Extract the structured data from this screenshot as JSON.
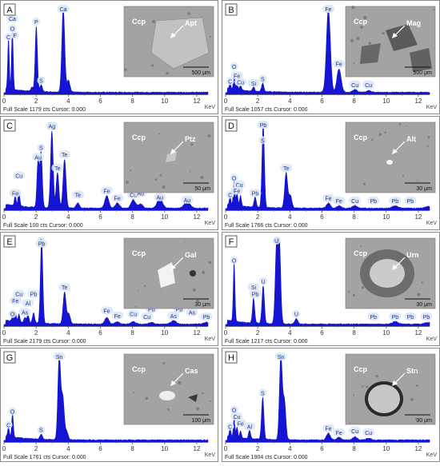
{
  "figure": {
    "axis_unit": "KeV",
    "tick_labels": [
      "0",
      "2",
      "4",
      "6",
      "8",
      "10",
      "12"
    ],
    "colors": {
      "spectrum": "#1414d2",
      "label_bubble": "#dde8f6",
      "label_text": "#1c2f8a",
      "frame": "#8a8a8a",
      "bse_bg": "#9a9a9a"
    }
  },
  "chart_data": [
    {
      "type": "area",
      "panel": "A",
      "xlabel": "KeV",
      "xlim": [
        0,
        12.7
      ],
      "footer": "Full Scale 1179 cts Cursor: 0.000",
      "peaks": [
        [
          0.28,
          0.6
        ],
        [
          0.52,
          0.7
        ],
        [
          1.74,
          0.05
        ],
        [
          2.01,
          0.78
        ],
        [
          2.31,
          0.08
        ],
        [
          3.69,
          1.0
        ],
        [
          4.01,
          0.14
        ]
      ],
      "labels": [
        {
          "text": "C",
          "x": 0.28,
          "y": 0.6
        },
        {
          "text": "O",
          "x": 0.52,
          "y": 0.7
        },
        {
          "text": "Ca",
          "x": 0.52,
          "y": 0.82
        },
        {
          "text": "F",
          "x": 0.68,
          "y": 0.62
        },
        {
          "text": "P",
          "x": 2.01,
          "y": 0.78
        },
        {
          "text": "S",
          "x": 2.31,
          "y": 0.08
        },
        {
          "text": "Ca",
          "x": 3.69,
          "y": 1.0
        }
      ],
      "inset": {
        "image": "Apt grain in Ccp",
        "labels": [
          {
            "text": "Ccp"
          },
          {
            "text": "Apt"
          }
        ],
        "scale_bar": "500 μm"
      }
    },
    {
      "type": "area",
      "panel": "B",
      "xlabel": "KeV",
      "xlim": [
        0,
        12.7
      ],
      "footer": "Full Scale 1057 cts Cursor: 0.000",
      "peaks": [
        [
          0.28,
          0.07
        ],
        [
          0.53,
          0.16
        ],
        [
          0.71,
          0.07
        ],
        [
          0.93,
          0.06
        ],
        [
          1.74,
          0.05
        ],
        [
          2.31,
          0.1
        ],
        [
          6.4,
          1.0
        ],
        [
          7.06,
          0.28
        ],
        [
          8.05,
          0.03
        ],
        [
          8.9,
          0.02
        ]
      ],
      "labels": [
        {
          "text": "C",
          "x": 0.28,
          "y": 0.07
        },
        {
          "text": "O",
          "x": 0.53,
          "y": 0.25
        },
        {
          "text": "Fe",
          "x": 0.71,
          "y": 0.14
        },
        {
          "text": "Cu",
          "x": 0.93,
          "y": 0.06
        },
        {
          "text": "Si",
          "x": 1.74,
          "y": 0.05
        },
        {
          "text": "S",
          "x": 2.31,
          "y": 0.1
        },
        {
          "text": "Fe",
          "x": 6.4,
          "y": 1.0
        },
        {
          "text": "Fe",
          "x": 7.06,
          "y": 0.28
        },
        {
          "text": "Cu",
          "x": 8.05,
          "y": 0.03
        },
        {
          "text": "Cu",
          "x": 8.9,
          "y": 0.03
        }
      ],
      "inset": {
        "image": "Mag in Ccp",
        "labels": [
          {
            "text": "Ccp"
          },
          {
            "text": "Mag"
          }
        ],
        "scale_bar": "500 μm"
      }
    },
    {
      "type": "area",
      "panel": "C",
      "xlabel": "KeV",
      "xlim": [
        0,
        12.7
      ],
      "footer": "Full Scale 100 cts Cursor: 0.000",
      "peaks": [
        [
          0.7,
          0.12
        ],
        [
          0.93,
          0.18
        ],
        [
          2.12,
          0.55
        ],
        [
          2.31,
          0.66
        ],
        [
          2.98,
          0.92
        ],
        [
          3.33,
          0.42
        ],
        [
          3.77,
          0.58
        ],
        [
          4.6,
          0.06
        ],
        [
          6.4,
          0.15
        ],
        [
          7.06,
          0.06
        ],
        [
          8.05,
          0.1
        ],
        [
          8.5,
          0.05
        ],
        [
          9.7,
          0.12
        ],
        [
          11.4,
          0.08
        ]
      ],
      "labels": [
        {
          "text": "Fe",
          "x": 0.7,
          "y": 0.12
        },
        {
          "text": "Cu",
          "x": 0.93,
          "y": 0.33
        },
        {
          "text": "Au",
          "x": 2.12,
          "y": 0.55
        },
        {
          "text": "S",
          "x": 2.31,
          "y": 0.66
        },
        {
          "text": "Ag",
          "x": 2.98,
          "y": 0.92
        },
        {
          "text": "Te",
          "x": 3.33,
          "y": 0.42
        },
        {
          "text": "Te",
          "x": 3.77,
          "y": 0.58
        },
        {
          "text": "Te",
          "x": 4.6,
          "y": 0.1
        },
        {
          "text": "Fe",
          "x": 6.4,
          "y": 0.15
        },
        {
          "text": "Fe",
          "x": 7.06,
          "y": 0.06
        },
        {
          "text": "Cu",
          "x": 8.05,
          "y": 0.1
        },
        {
          "text": "Au",
          "x": 8.5,
          "y": 0.12
        },
        {
          "text": "Au",
          "x": 9.7,
          "y": 0.07
        },
        {
          "text": "Au",
          "x": 11.4,
          "y": 0.04
        }
      ],
      "inset": {
        "image": "Ptz in Ccp",
        "labels": [
          {
            "text": "Ccp"
          },
          {
            "text": "Ptz"
          }
        ],
        "scale_bar": "50 μm"
      }
    },
    {
      "type": "area",
      "panel": "D",
      "xlabel": "KeV",
      "xlim": [
        0,
        12.7
      ],
      "footer": "Full Scale 1766 cts Cursor: 0.000",
      "peaks": [
        [
          0.28,
          0.1
        ],
        [
          0.53,
          0.3
        ],
        [
          0.71,
          0.15
        ],
        [
          0.93,
          0.12
        ],
        [
          1.84,
          0.12
        ],
        [
          2.34,
          1.0
        ],
        [
          3.77,
          0.42
        ],
        [
          4.03,
          0.15
        ],
        [
          6.4,
          0.06
        ],
        [
          7.06,
          0.03
        ],
        [
          8.05,
          0.03
        ],
        [
          10.55,
          0.03
        ],
        [
          12.6,
          0.02
        ]
      ],
      "labels": [
        {
          "text": "C",
          "x": 0.28,
          "y": 0.1
        },
        {
          "text": "O",
          "x": 0.53,
          "y": 0.3
        },
        {
          "text": "Cu",
          "x": 0.85,
          "y": 0.22
        },
        {
          "text": "Fe",
          "x": 0.71,
          "y": 0.15
        },
        {
          "text": "Pb",
          "x": 1.84,
          "y": 0.12
        },
        {
          "text": "Pb",
          "x": 2.34,
          "y": 1.0
        },
        {
          "text": "S",
          "x": 2.31,
          "y": 0.75
        },
        {
          "text": "Te",
          "x": 3.77,
          "y": 0.42
        },
        {
          "text": "Fe",
          "x": 6.4,
          "y": 0.06
        },
        {
          "text": "Fe",
          "x": 7.06,
          "y": 0.03
        },
        {
          "text": "Cu",
          "x": 8.05,
          "y": 0.03
        },
        {
          "text": "Pb",
          "x": 9.2,
          "y": 0.03
        },
        {
          "text": "Pb",
          "x": 10.55,
          "y": 0.03
        },
        {
          "text": "Pb",
          "x": 11.5,
          "y": 0.03
        }
      ],
      "inset": {
        "image": "Alt in Ccp",
        "labels": [
          {
            "text": "Ccp"
          },
          {
            "text": "Alt"
          }
        ],
        "scale_bar": "30 μm"
      }
    },
    {
      "type": "area",
      "panel": "E",
      "xlabel": "KeV",
      "xlim": [
        0,
        12.7
      ],
      "footer": "Full Scale 2179 cts Cursor: 0.000",
      "peaks": [
        [
          0.53,
          0.06
        ],
        [
          0.71,
          0.12
        ],
        [
          0.93,
          0.09
        ],
        [
          1.3,
          0.06
        ],
        [
          1.49,
          0.1
        ],
        [
          1.84,
          0.12
        ],
        [
          2.34,
          1.0
        ],
        [
          3.77,
          0.38
        ],
        [
          4.03,
          0.12
        ],
        [
          6.4,
          0.08
        ],
        [
          7.06,
          0.03
        ],
        [
          8.05,
          0.03
        ],
        [
          9.18,
          0.02
        ],
        [
          10.55,
          0.04
        ],
        [
          12.6,
          0.02
        ]
      ],
      "labels": [
        {
          "text": "O",
          "x": 0.53,
          "y": 0.06
        },
        {
          "text": "Fe",
          "x": 0.71,
          "y": 0.22
        },
        {
          "text": "Cu",
          "x": 0.93,
          "y": 0.3
        },
        {
          "text": "As",
          "x": 1.3,
          "y": 0.08
        },
        {
          "text": "Al",
          "x": 1.49,
          "y": 0.19
        },
        {
          "text": "Pb",
          "x": 1.84,
          "y": 0.3
        },
        {
          "text": "S",
          "x": 2.31,
          "y": 1.0
        },
        {
          "text": "Pb",
          "x": 2.34,
          "y": 0.9
        },
        {
          "text": "Te",
          "x": 3.77,
          "y": 0.38
        },
        {
          "text": "Fe",
          "x": 6.4,
          "y": 0.1
        },
        {
          "text": "Fe",
          "x": 7.06,
          "y": 0.04
        },
        {
          "text": "Cu",
          "x": 8.05,
          "y": 0.06
        },
        {
          "text": "Cu",
          "x": 8.9,
          "y": 0.03
        },
        {
          "text": "Pb",
          "x": 9.18,
          "y": 0.12
        },
        {
          "text": "As",
          "x": 10.55,
          "y": 0.04
        },
        {
          "text": "As",
          "x": 11.7,
          "y": 0.08
        },
        {
          "text": "Pb",
          "x": 10.9,
          "y": 0.12
        },
        {
          "text": "Pb",
          "x": 12.6,
          "y": 0.03
        }
      ],
      "inset": {
        "image": "Gal in Ccp",
        "labels": [
          {
            "text": "Ccp"
          },
          {
            "text": "Gal"
          }
        ],
        "scale_bar": "30 μm"
      }
    },
    {
      "type": "area",
      "panel": "F",
      "xlabel": "KeV",
      "xlim": [
        0,
        12.7
      ],
      "footer": "Full Scale 1217 cts Cursor: 0.000",
      "peaks": [
        [
          0.53,
          0.7
        ],
        [
          1.74,
          0.3
        ],
        [
          2.34,
          0.45
        ],
        [
          3.17,
          0.88
        ],
        [
          3.34,
          1.0
        ],
        [
          4.4,
          0.06
        ],
        [
          10.55,
          0.03
        ],
        [
          12.6,
          0.02
        ]
      ],
      "labels": [
        {
          "text": "O",
          "x": 0.53,
          "y": 0.7
        },
        {
          "text": "Si",
          "x": 1.74,
          "y": 0.38
        },
        {
          "text": "Pb",
          "x": 1.84,
          "y": 0.3
        },
        {
          "text": "U",
          "x": 2.34,
          "y": 0.45
        },
        {
          "text": "U",
          "x": 3.17,
          "y": 1.0
        },
        {
          "text": "U",
          "x": 4.4,
          "y": 0.06
        },
        {
          "text": "Pb",
          "x": 9.2,
          "y": 0.03
        },
        {
          "text": "Pb",
          "x": 10.55,
          "y": 0.03
        },
        {
          "text": "Pb",
          "x": 11.5,
          "y": 0.03
        },
        {
          "text": "Pb",
          "x": 12.5,
          "y": 0.03
        }
      ],
      "inset": {
        "image": "Urn in Ccp",
        "labels": [
          {
            "text": "Ccp"
          },
          {
            "text": "Urn"
          }
        ],
        "scale_bar": "30 μm"
      }
    },
    {
      "type": "area",
      "panel": "G",
      "xlabel": "KeV",
      "xlim": [
        0,
        12.7
      ],
      "footer": "Full Scale 1761 cts Cursor: 0.000",
      "peaks": [
        [
          0.28,
          0.12
        ],
        [
          0.53,
          0.28
        ],
        [
          2.31,
          0.06
        ],
        [
          3.44,
          1.0
        ],
        [
          3.66,
          0.5
        ],
        [
          3.9,
          0.1
        ]
      ],
      "labels": [
        {
          "text": "C",
          "x": 0.28,
          "y": 0.12
        },
        {
          "text": "O",
          "x": 0.53,
          "y": 0.28
        },
        {
          "text": "S",
          "x": 2.31,
          "y": 0.06
        },
        {
          "text": "Sn",
          "x": 3.44,
          "y": 1.0
        }
      ],
      "inset": {
        "image": "Cas in Ccp",
        "labels": [
          {
            "text": "Ccp"
          },
          {
            "text": "Cas"
          }
        ],
        "scale_bar": "100 μm"
      }
    },
    {
      "type": "area",
      "panel": "H",
      "xlabel": "KeV",
      "xlim": [
        0,
        12.7
      ],
      "footer": "Full Scale 1904 cts Cursor: 0.000",
      "peaks": [
        [
          0.28,
          0.1
        ],
        [
          0.53,
          0.22
        ],
        [
          0.71,
          0.12
        ],
        [
          0.93,
          0.08
        ],
        [
          1.49,
          0.1
        ],
        [
          2.31,
          0.5
        ],
        [
          3.44,
          1.0
        ],
        [
          3.66,
          0.46
        ],
        [
          6.4,
          0.08
        ],
        [
          7.06,
          0.03
        ],
        [
          8.05,
          0.04
        ],
        [
          8.9,
          0.02
        ]
      ],
      "labels": [
        {
          "text": "C",
          "x": 0.28,
          "y": 0.1
        },
        {
          "text": "O",
          "x": 0.53,
          "y": 0.3
        },
        {
          "text": "Cu",
          "x": 0.7,
          "y": 0.22
        },
        {
          "text": "Fe",
          "x": 0.93,
          "y": 0.14
        },
        {
          "text": "Al",
          "x": 1.49,
          "y": 0.1
        },
        {
          "text": "S",
          "x": 2.31,
          "y": 0.5
        },
        {
          "text": "Sn",
          "x": 3.44,
          "y": 1.0
        },
        {
          "text": "Fe",
          "x": 6.4,
          "y": 0.08
        },
        {
          "text": "Fe",
          "x": 7.06,
          "y": 0.03
        },
        {
          "text": "Cu",
          "x": 8.05,
          "y": 0.05
        },
        {
          "text": "Cu",
          "x": 8.9,
          "y": 0.03
        }
      ],
      "inset": {
        "image": "Stn in Ccp",
        "labels": [
          {
            "text": "Ccp"
          },
          {
            "text": "Stn"
          }
        ],
        "scale_bar": "30 μm"
      }
    }
  ]
}
